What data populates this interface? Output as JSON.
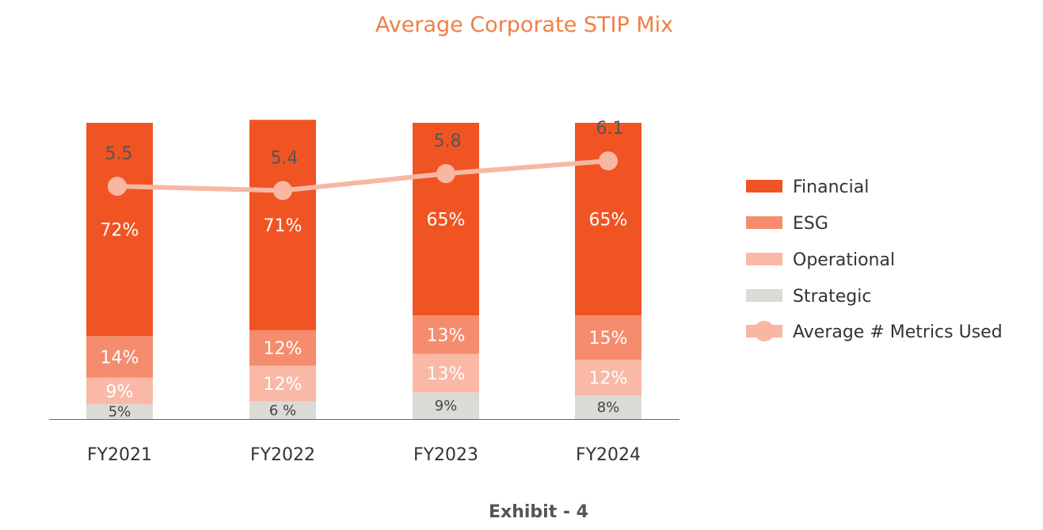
{
  "colors": {
    "Financial": "#F05423",
    "ESG": "#F58C6E",
    "Operational": "#F9B9A6",
    "Strategic": "#DCDAD7",
    "line": "#F7B7A3",
    "title": "#F07E46",
    "axis": "#666666"
  },
  "footer": {
    "caption": "Exhibit - 4"
  },
  "chart_data": {
    "type": "bar",
    "stacked": true,
    "title": "Average Corporate STIP Mix",
    "xlabel": "",
    "ylabel": "",
    "ylim": [
      0,
      100
    ],
    "grid": false,
    "legend_position": "right",
    "categories": [
      "FY2021",
      "FY2022",
      "FY2023",
      "FY2024"
    ],
    "series": [
      {
        "name": "Strategic",
        "values": [
          5,
          6,
          9,
          8
        ],
        "labels": [
          "5%",
          "6 %",
          "9%",
          "8%"
        ]
      },
      {
        "name": "Operational",
        "values": [
          9,
          12,
          13,
          12
        ],
        "labels": [
          "9%",
          "12%",
          "13%",
          "12%"
        ]
      },
      {
        "name": "ESG",
        "values": [
          14,
          12,
          13,
          15
        ],
        "labels": [
          "14%",
          "12%",
          "13%",
          "15%"
        ]
      },
      {
        "name": "Financial",
        "values": [
          72,
          71,
          65,
          65
        ],
        "labels": [
          "72%",
          "71%",
          "65%",
          "65%"
        ]
      }
    ],
    "line_series": {
      "name": "Average # Metrics Used",
      "values": [
        5.5,
        5.4,
        5.8,
        6.1
      ],
      "labels": [
        "5.5",
        "5.4",
        "5.8",
        "6.1"
      ],
      "ylim": [
        0,
        7
      ]
    },
    "legend": [
      "Financial",
      "ESG",
      "Operational",
      "Strategic",
      "Average # Metrics Used"
    ]
  }
}
